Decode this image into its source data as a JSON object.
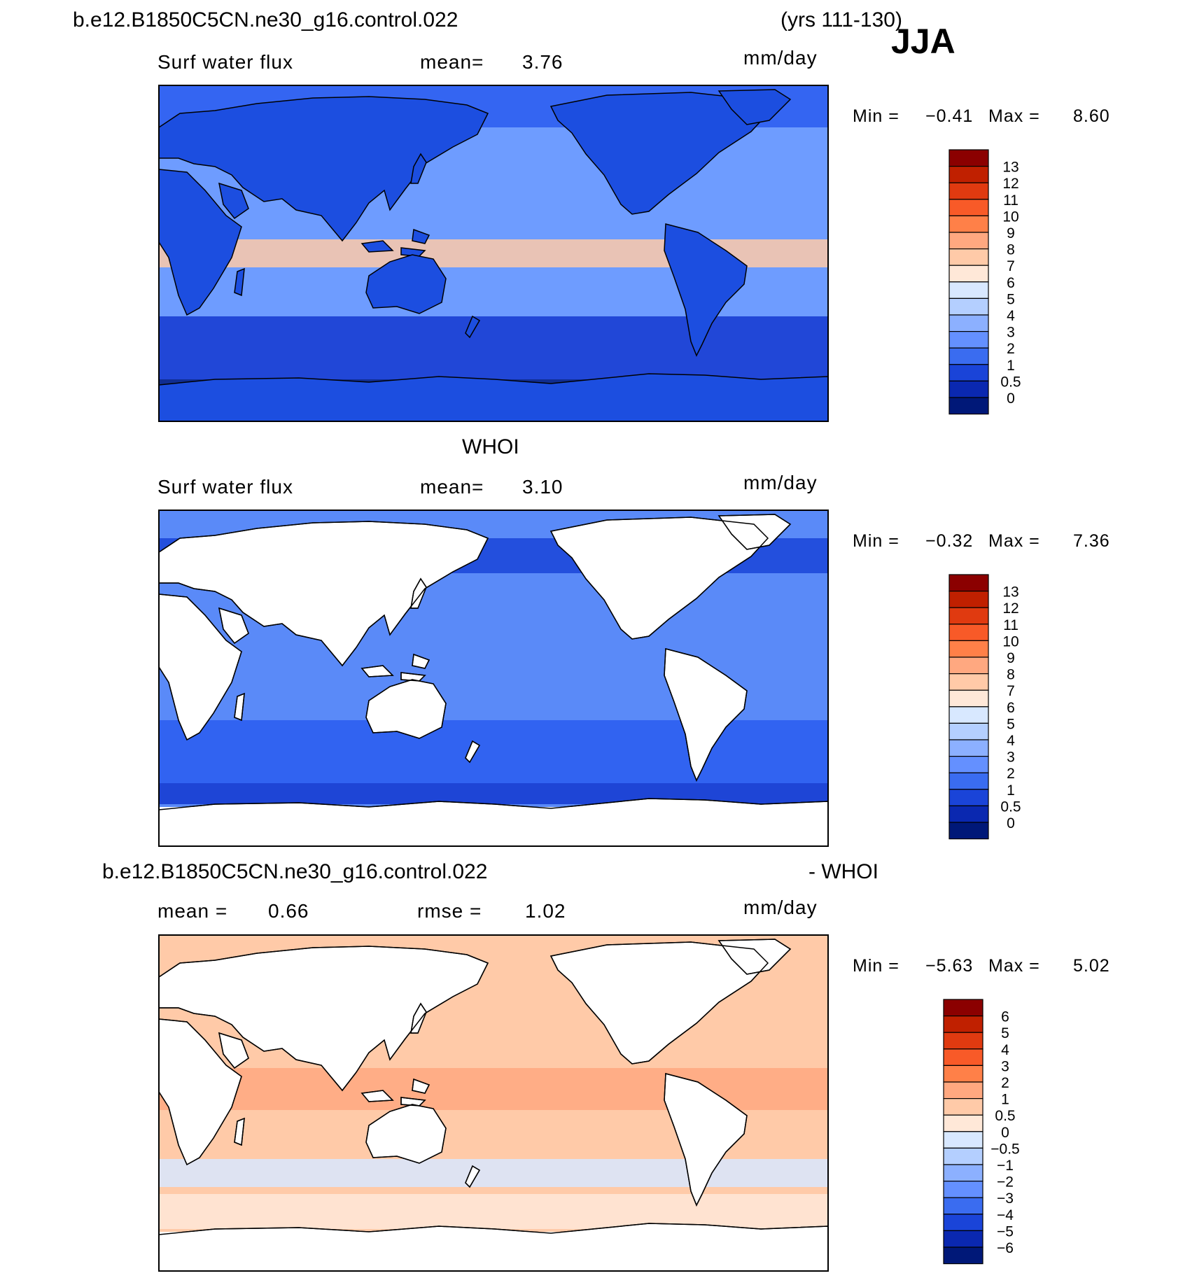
{
  "header": {
    "case_name": "b.e12.B1850C5CN.ne30_g16.control.022",
    "years": "(yrs 111-130)",
    "season": "JJA"
  },
  "panels": [
    {
      "id": "model",
      "variable": "Surf water flux",
      "stat1_label": "mean=",
      "stat1_value": "3.76",
      "units": "mm/day",
      "min_label": "Min =",
      "min_value": "−0.41",
      "max_label": "Max =",
      "max_value": "8.60"
    },
    {
      "id": "obs",
      "title": "WHOI",
      "variable": "Surf water flux",
      "stat1_label": "mean=",
      "stat1_value": "3.10",
      "units": "mm/day",
      "min_label": "Min =",
      "min_value": "−0.32",
      "max_label": "Max =",
      "max_value": "7.36"
    },
    {
      "id": "diff",
      "title_left": "b.e12.B1850C5CN.ne30_g16.control.022",
      "title_right": "- WHOI",
      "stat1_label": "mean =",
      "stat1_value": "0.66",
      "stat2_label": "rmse =",
      "stat2_value": "1.02",
      "units": "mm/day",
      "min_label": "Min =",
      "min_value": "−5.63",
      "max_label": "Max =",
      "max_value": "5.02"
    }
  ],
  "colorbars": {
    "abs_labels": [
      "13",
      "12",
      "11",
      "10",
      "9",
      "8",
      "7",
      "6",
      "5",
      "4",
      "3",
      "2",
      "1",
      "0.5",
      "0"
    ],
    "abs_colors": [
      "#8b0000",
      "#c02000",
      "#e03a10",
      "#f85a28",
      "#ff8048",
      "#ffa880",
      "#ffcaa8",
      "#ffe8d8",
      "#d8e8ff",
      "#b4cfff",
      "#8cb0ff",
      "#6490ff",
      "#3a6cf0",
      "#1a44d8",
      "#0a28b0",
      "#001878"
    ],
    "diff_labels": [
      "6",
      "5",
      "4",
      "3",
      "2",
      "1",
      "0.5",
      "0",
      "−0.5",
      "−1",
      "−2",
      "−3",
      "−4",
      "−5",
      "−6"
    ],
    "diff_colors": [
      "#8b0000",
      "#c02000",
      "#e03a10",
      "#f85a28",
      "#ff8048",
      "#ffa880",
      "#ffcaa8",
      "#ffe8d8",
      "#d8e8ff",
      "#b4cfff",
      "#8cb0ff",
      "#6490ff",
      "#3a6cf0",
      "#1a44d8",
      "#0a28b0",
      "#001878"
    ]
  },
  "fills": {
    "model_ocean": "#6e9cff",
    "model_land": "#1c4ee0",
    "model_antarctic": "#001a7e",
    "model_south_band": "#1438d0",
    "obs_ocean": "#5a8af8",
    "obs_land": "#ffffff",
    "diff_ocean": "#ffcaa8",
    "diff_land": "#ffffff"
  }
}
